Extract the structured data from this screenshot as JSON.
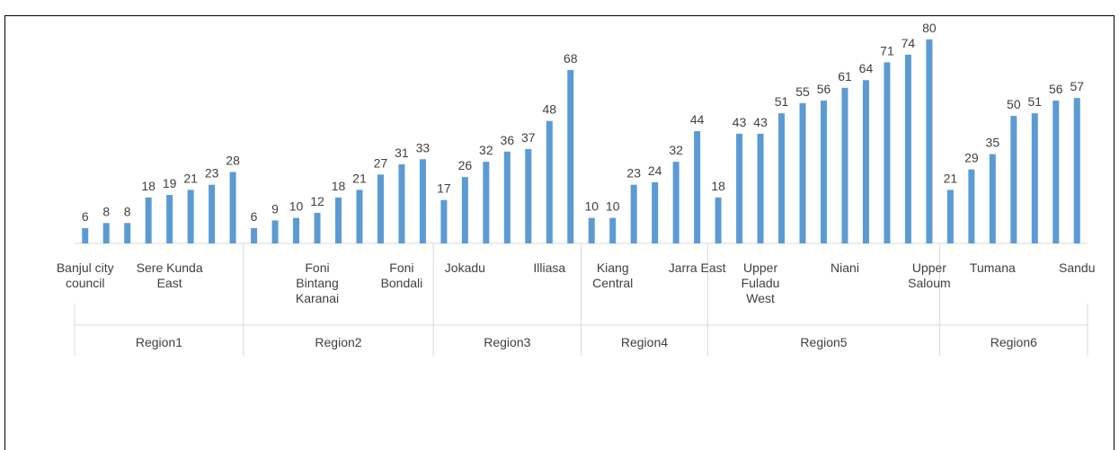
{
  "chart_data": {
    "type": "bar",
    "color": "#5b9bd5",
    "groups": [
      {
        "name": "Region1",
        "categories": [
          "Banjul city council",
          null,
          null,
          null,
          "Sere Kunda East",
          null,
          null,
          null
        ],
        "values": [
          6,
          8,
          8,
          18,
          19,
          21,
          23,
          28
        ]
      },
      {
        "name": "Region2",
        "categories": [
          null,
          null,
          null,
          "Foni Bintang Karanai",
          null,
          null,
          null,
          "Foni Bondali",
          null
        ],
        "values": [
          6,
          9,
          10,
          12,
          18,
          21,
          27,
          31,
          33
        ]
      },
      {
        "name": "Region3",
        "categories": [
          null,
          "Jokadu",
          null,
          null,
          null,
          "Illiasa",
          null
        ],
        "values": [
          17,
          26,
          32,
          36,
          37,
          48,
          68
        ]
      },
      {
        "name": "Region4",
        "categories": [
          null,
          "Kiang Central",
          null,
          null,
          null,
          "Jarra East"
        ],
        "values": [
          10,
          10,
          23,
          24,
          32,
          44
        ]
      },
      {
        "name": "Region5",
        "categories": [
          null,
          null,
          "Upper Fuladu West",
          null,
          null,
          null,
          "Niani",
          null,
          null,
          null,
          "Upper Saloum"
        ],
        "values": [
          18,
          43,
          43,
          51,
          55,
          56,
          61,
          64,
          71,
          74,
          80
        ]
      },
      {
        "name": "Region6",
        "categories": [
          null,
          null,
          "Tumana",
          null,
          null,
          null,
          "Sandu"
        ],
        "values": [
          21,
          29,
          35,
          50,
          51,
          56,
          57
        ]
      }
    ]
  }
}
